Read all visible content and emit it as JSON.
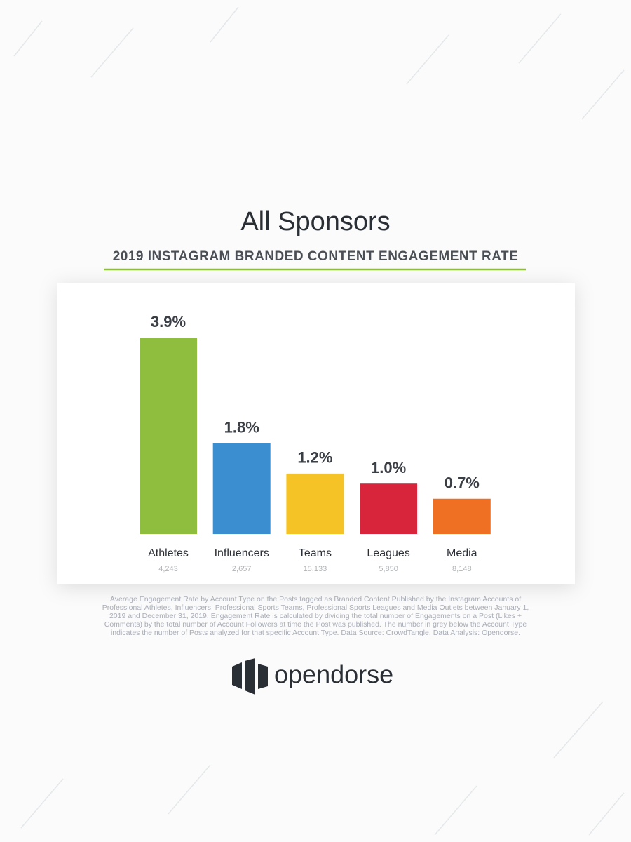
{
  "chart_data": {
    "type": "bar",
    "title": "All Sponsors",
    "subtitle": "2019 INSTAGRAM BRANDED CONTENT ENGAGEMENT RATE",
    "categories": [
      "Athletes",
      "Influencers",
      "Teams",
      "Leagues",
      "Media"
    ],
    "values": [
      3.9,
      1.8,
      1.2,
      1.0,
      0.7
    ],
    "value_labels": [
      "3.9%",
      "1.8%",
      "1.2%",
      "1.0%",
      "0.7%"
    ],
    "post_counts": [
      "4,243",
      "2,657",
      "15,133",
      "5,850",
      "8,148"
    ],
    "colors": [
      "#8fbe3f",
      "#3b8fd0",
      "#f5c325",
      "#d9253c",
      "#f07023"
    ],
    "footnote": "Average Engagement Rate by Account Type on the Posts tagged as Branded Content Published by the Instagram Accounts of Professional Athletes, Influencers, Professional Sports Teams, Professional Sports Leagues and Media Outlets between January 1, 2019 and December 31, 2019. Engagement Rate is calculated by dividing the total number of Engagements on a Post (Likes + Comments) by the total number of Account Followers at time the Post was published. The number in grey below the Account Type indicates the number of Posts analyzed for that specific Account Type. Data Source: CrowdTangle. Data Analysis: Opendorse."
  },
  "logo": "opendorse"
}
